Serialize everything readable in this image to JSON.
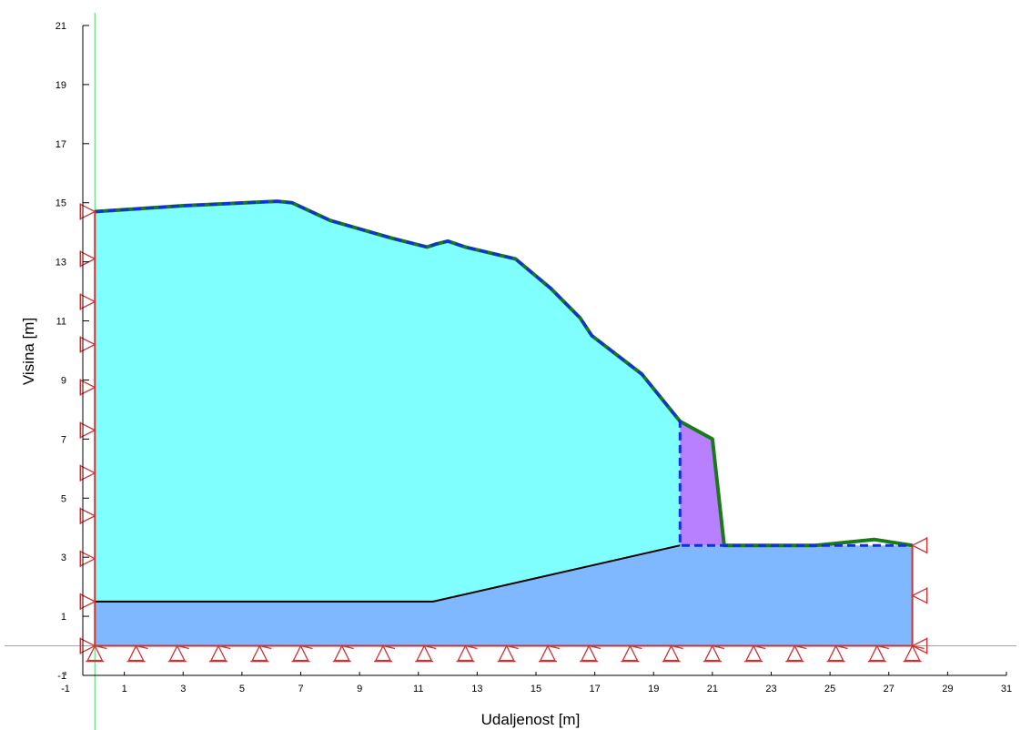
{
  "chart_data": {
    "type": "area",
    "title": "",
    "xlabel": "Udaljenost [m]",
    "ylabel": "Visina [m]",
    "xlim": [
      -1,
      31
    ],
    "ylim": [
      -1,
      21
    ],
    "xticks": [
      "-1",
      "1",
      "3",
      "5",
      "7",
      "9",
      "11",
      "13",
      "15",
      "17",
      "19",
      "21",
      "23",
      "25",
      "27",
      "29",
      "31"
    ],
    "yticks": [
      "-1",
      "1",
      "3",
      "5",
      "7",
      "9",
      "11",
      "13",
      "15",
      "17",
      "19",
      "21"
    ],
    "grid": false,
    "regions": [
      {
        "color": "#80b8ff",
        "points": [
          [
            0,
            0
          ],
          [
            27.8,
            0
          ],
          [
            27.8,
            3.4
          ],
          [
            19.9,
            3.4
          ],
          [
            11.5,
            1.5
          ],
          [
            0,
            1.5
          ]
        ]
      },
      {
        "color": "#80ffff",
        "points": [
          [
            0,
            1.5
          ],
          [
            11.5,
            1.5
          ],
          [
            19.9,
            3.4
          ],
          [
            19.9,
            7.6
          ],
          [
            18.6,
            9.2
          ],
          [
            16.9,
            10.5
          ],
          [
            16.5,
            11.1
          ],
          [
            15.5,
            12.1
          ],
          [
            14.3,
            13.1
          ],
          [
            12.6,
            13.5
          ],
          [
            12.0,
            13.7
          ],
          [
            11.6,
            13.6
          ],
          [
            11.3,
            13.5
          ],
          [
            10.1,
            13.8
          ],
          [
            8.0,
            14.4
          ],
          [
            6.7,
            15.0
          ],
          [
            6.2,
            15.05
          ],
          [
            3.0,
            14.9
          ],
          [
            0,
            14.7
          ]
        ]
      },
      {
        "color": "#b880ff",
        "points": [
          [
            19.9,
            3.4
          ],
          [
            19.9,
            7.6
          ],
          [
            21.0,
            7.0
          ],
          [
            21.4,
            3.4
          ]
        ]
      }
    ],
    "series": [
      {
        "style": "line",
        "color": "#1a7a1a",
        "points": [
          [
            0,
            14.7
          ],
          [
            3.0,
            14.9
          ],
          [
            6.2,
            15.05
          ],
          [
            6.7,
            15.0
          ],
          [
            8.0,
            14.4
          ],
          [
            10.1,
            13.8
          ],
          [
            11.3,
            13.5
          ],
          [
            11.6,
            13.6
          ],
          [
            12.0,
            13.7
          ],
          [
            12.6,
            13.5
          ],
          [
            14.3,
            13.1
          ],
          [
            15.5,
            12.1
          ],
          [
            16.5,
            11.1
          ],
          [
            16.9,
            10.5
          ],
          [
            18.6,
            9.2
          ],
          [
            19.9,
            7.6
          ],
          [
            21.0,
            7.0
          ],
          [
            21.4,
            3.4
          ],
          [
            24.5,
            3.4
          ],
          [
            25.5,
            3.5
          ],
          [
            26.5,
            3.6
          ],
          [
            27.8,
            3.4
          ]
        ]
      },
      {
        "style": "dashed",
        "color": "#1030e0",
        "points": [
          [
            0,
            14.7
          ],
          [
            3.0,
            14.9
          ],
          [
            6.2,
            15.05
          ],
          [
            6.7,
            15.0
          ],
          [
            8.0,
            14.4
          ],
          [
            10.1,
            13.8
          ],
          [
            11.3,
            13.5
          ],
          [
            11.6,
            13.6
          ],
          [
            12.0,
            13.7
          ],
          [
            12.6,
            13.5
          ],
          [
            14.3,
            13.1
          ],
          [
            15.5,
            12.1
          ],
          [
            16.5,
            11.1
          ],
          [
            16.9,
            10.5
          ],
          [
            18.6,
            9.2
          ],
          [
            19.9,
            7.6
          ],
          [
            19.9,
            3.4
          ],
          [
            27.8,
            3.4
          ]
        ]
      },
      {
        "style": "line",
        "color": "#000000",
        "points": [
          [
            0,
            1.5
          ],
          [
            11.5,
            1.5
          ],
          [
            19.9,
            3.4
          ]
        ]
      },
      {
        "style": "line",
        "color": "#cc3333",
        "points": [
          [
            0,
            14.7
          ],
          [
            0,
            0
          ],
          [
            27.8,
            0
          ],
          [
            27.8,
            3.4
          ]
        ]
      }
    ],
    "reference_lines": [
      {
        "orientation": "horizontal",
        "value": 0,
        "color": "#ff8080"
      },
      {
        "orientation": "vertical",
        "value": 0,
        "color": "#66dd88"
      }
    ],
    "supports": {
      "color": "#cc3333",
      "left_edge_y": [
        0,
        1.5,
        2.95,
        4.4,
        5.85,
        7.3,
        8.75,
        10.2,
        11.65,
        13.1,
        14.7
      ],
      "right_edge_y": [
        0,
        1.7,
        3.4
      ],
      "bottom_x": [
        0,
        1.4,
        2.8,
        4.2,
        5.6,
        7.0,
        8.4,
        9.8,
        11.2,
        12.6,
        14.0,
        15.4,
        16.8,
        18.2,
        19.6,
        21.0,
        22.4,
        23.8,
        25.2,
        26.6,
        27.8
      ]
    }
  }
}
